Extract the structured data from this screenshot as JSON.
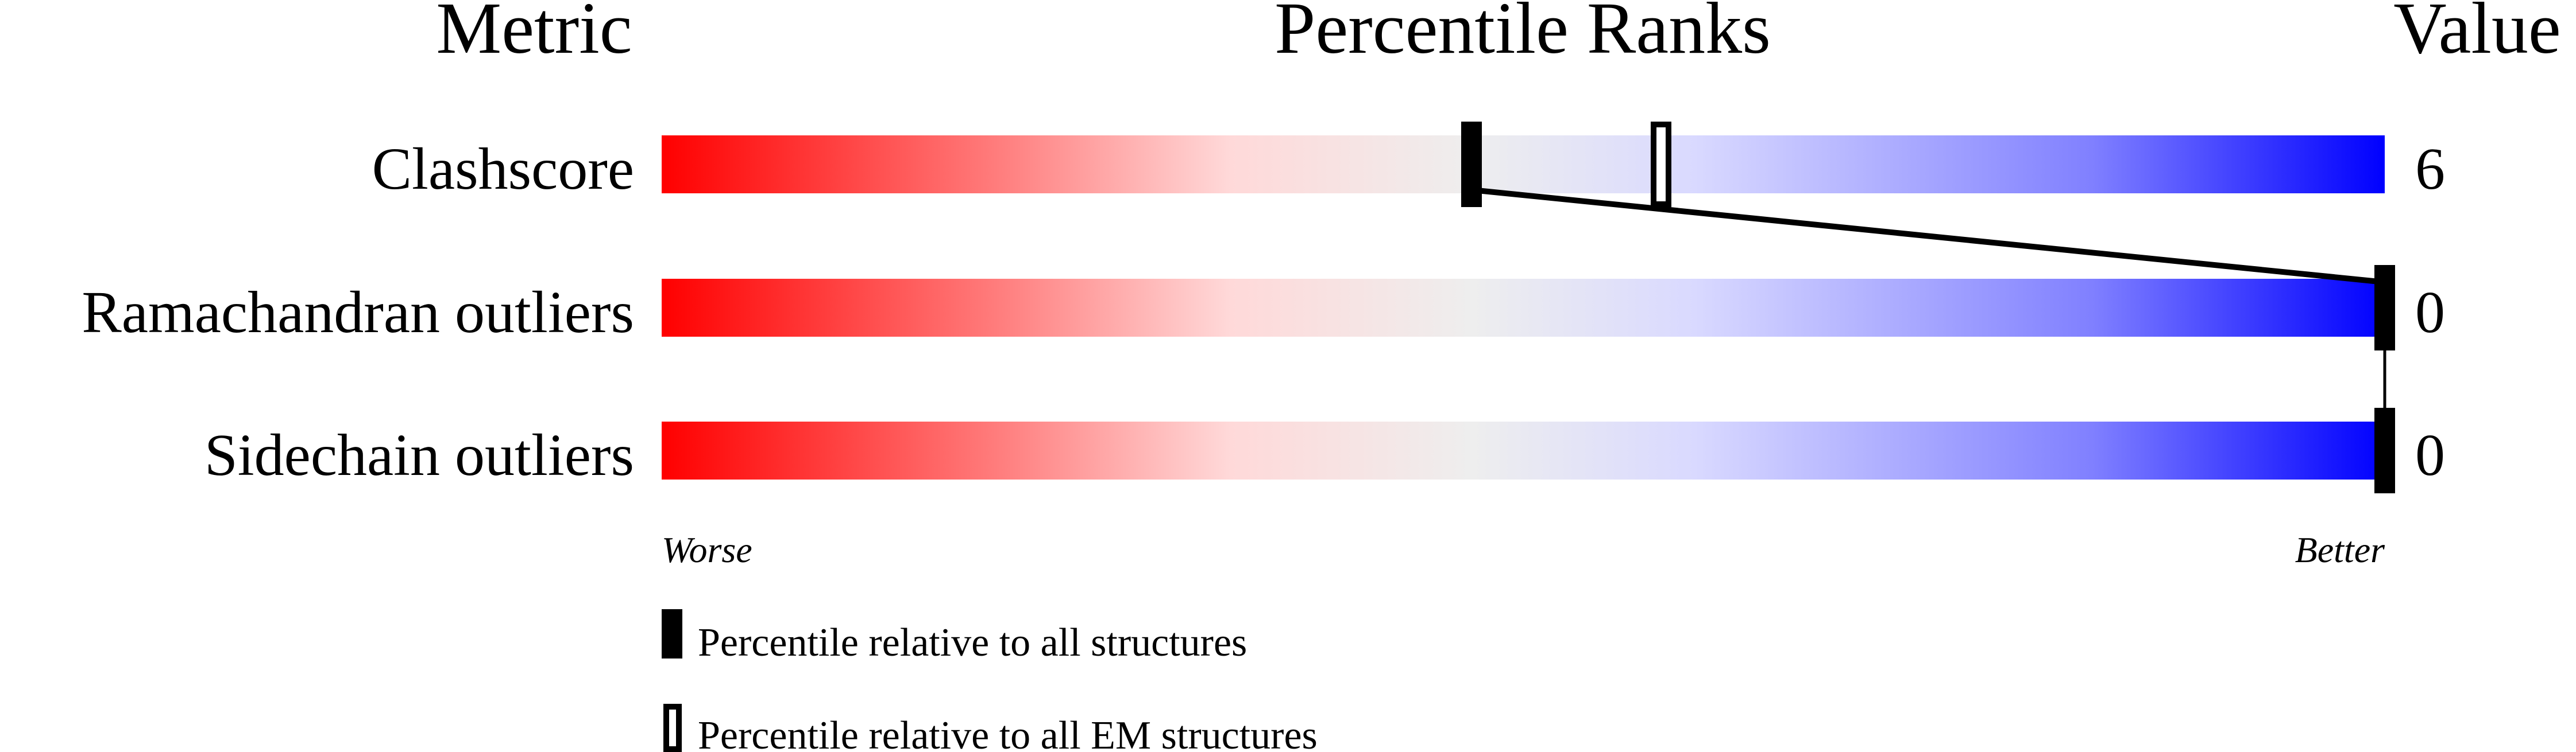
{
  "chart_data": {
    "type": "percentile-slider",
    "headers": {
      "metric": "Metric",
      "ranks": "Percentile Ranks",
      "value": "Value"
    },
    "xlim": [
      0,
      100
    ],
    "scale_labels": {
      "worse": "Worse",
      "better": "Better"
    },
    "gradient_colors": [
      "#ff0000",
      "#ff8080",
      "#ffd9d9",
      "#eeeeee",
      "#d9d9ff",
      "#8080ff",
      "#0000ff"
    ],
    "rows": [
      {
        "metric": "Clashscore",
        "value": "6",
        "percentile_all": 47,
        "percentile_em": 58
      },
      {
        "metric": "Ramachandran outliers",
        "value": "0",
        "percentile_all": 100
      },
      {
        "metric": "Sidechain outliers",
        "value": "0",
        "percentile_all": 100
      }
    ],
    "legend": [
      {
        "marker": "filled",
        "label": "Percentile relative to all structures"
      },
      {
        "marker": "outline",
        "label": "Percentile relative to all EM structures"
      }
    ]
  }
}
